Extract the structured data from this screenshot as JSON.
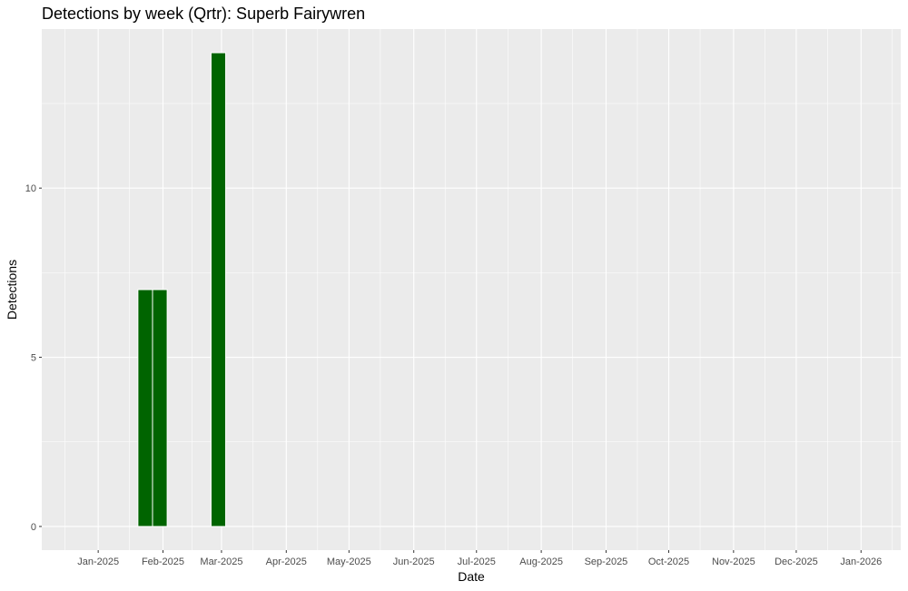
{
  "chart_data": {
    "type": "bar",
    "title": "Detections by week (Qrtr): Superb Fairywren",
    "xlabel": "Date",
    "ylabel": "Detections",
    "x_axis": {
      "type": "date",
      "range": [
        "2024-12-05",
        "2026-01-20"
      ],
      "ticks": [
        {
          "date": "2025-01-01",
          "label": "Jan-2025"
        },
        {
          "date": "2025-02-01",
          "label": "Feb-2025"
        },
        {
          "date": "2025-03-01",
          "label": "Mar-2025"
        },
        {
          "date": "2025-04-01",
          "label": "Apr-2025"
        },
        {
          "date": "2025-05-01",
          "label": "May-2025"
        },
        {
          "date": "2025-06-01",
          "label": "Jun-2025"
        },
        {
          "date": "2025-07-01",
          "label": "Jul-2025"
        },
        {
          "date": "2025-08-01",
          "label": "Aug-2025"
        },
        {
          "date": "2025-09-01",
          "label": "Sep-2025"
        },
        {
          "date": "2025-10-01",
          "label": "Oct-2025"
        },
        {
          "date": "2025-11-01",
          "label": "Nov-2025"
        },
        {
          "date": "2025-12-01",
          "label": "Dec-2025"
        },
        {
          "date": "2026-01-01",
          "label": "Jan-2026"
        }
      ]
    },
    "y_axis": {
      "range": [
        -0.7,
        14.7
      ],
      "ticks": [
        0,
        5,
        10
      ],
      "minor_ticks": [
        2.5,
        7.5,
        12.5
      ]
    },
    "bars": [
      {
        "start": "2025-01-20",
        "end": "2025-01-27",
        "value": 7
      },
      {
        "start": "2025-01-27",
        "end": "2025-02-03",
        "value": 7
      },
      {
        "start": "2025-02-24",
        "end": "2025-03-03",
        "value": 14
      }
    ],
    "colors": {
      "bar_fill": "#006400",
      "bar_outline": "#ffffff",
      "panel_background": "#ebebeb",
      "grid": "#ffffff"
    },
    "grid": true,
    "legend": "none"
  }
}
